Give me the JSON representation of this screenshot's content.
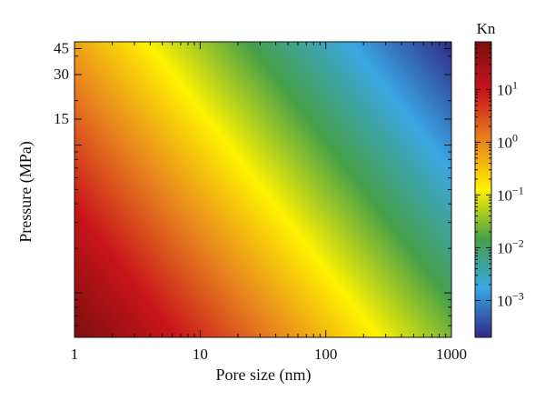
{
  "chart_data": {
    "type": "heatmap",
    "title": "",
    "xlabel": "Pore size (nm)",
    "ylabel": "Pressure (MPa)",
    "x_scale": "log",
    "y_scale": "log",
    "xlim": [
      1,
      1000
    ],
    "ylim": [
      0.5,
      50
    ],
    "x_ticks": [
      {
        "value": 1,
        "label": "1"
      },
      {
        "value": 10,
        "label": "10"
      },
      {
        "value": 100,
        "label": "100"
      },
      {
        "value": 1000,
        "label": "1000"
      }
    ],
    "y_ticks": [
      {
        "value": 15,
        "label": "15"
      },
      {
        "value": 30,
        "label": "30"
      },
      {
        "value": 45,
        "label": "45"
      }
    ],
    "colorbar": {
      "label": "Kn",
      "scale": "log",
      "range": [
        0.0002,
        80
      ],
      "ticks": [
        {
          "value": 10,
          "base": "10",
          "exp": "1"
        },
        {
          "value": 1,
          "base": "10",
          "exp": "0"
        },
        {
          "value": 0.1,
          "base": "10",
          "exp": "−1"
        },
        {
          "value": 0.01,
          "base": "10",
          "exp": "−2"
        },
        {
          "value": 0.001,
          "base": "10",
          "exp": "−3"
        }
      ],
      "colors": [
        "#2f2a86",
        "#3aa7e3",
        "#45a048",
        "#fff200",
        "#e8841f",
        "#c8141b",
        "#7d0e0e"
      ]
    },
    "diagonal_value_gradient": [
      {
        "pore_nm": 1,
        "pressure_mpa": 0.5,
        "kn": 80
      },
      {
        "pore_nm": 1000,
        "pressure_mpa": 50,
        "kn": 0.0002
      }
    ]
  }
}
